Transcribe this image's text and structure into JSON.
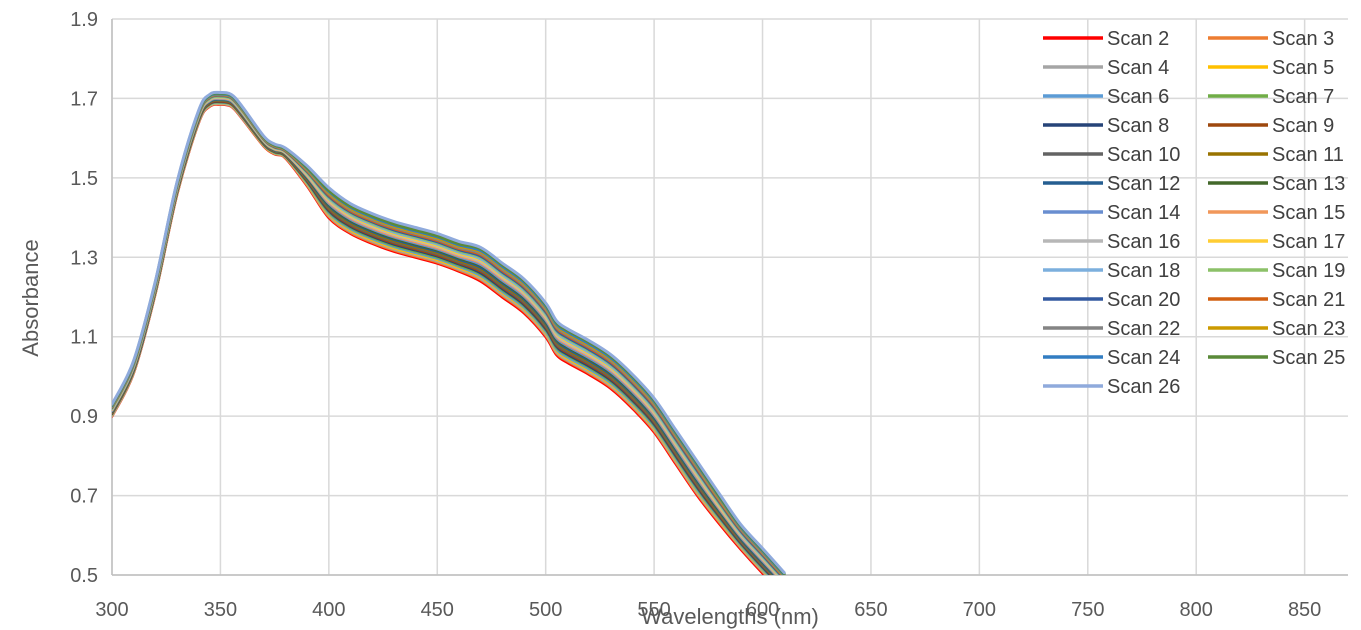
{
  "chart_data": {
    "type": "line",
    "title": "",
    "xlabel": "Wavelengths (nm)",
    "ylabel": "Absorbance",
    "xlim": [
      300,
      870
    ],
    "ylim": [
      0.5,
      1.9
    ],
    "xticks": [
      300,
      350,
      400,
      450,
      500,
      550,
      600,
      650,
      700,
      750,
      800,
      850
    ],
    "yticks": [
      0.5,
      0.7,
      0.9,
      1.1,
      1.3,
      1.5,
      1.7,
      1.9
    ],
    "grid": true,
    "legend_position": "top-right",
    "x": [
      300,
      310,
      320,
      330,
      340,
      345,
      350,
      355,
      360,
      370,
      375,
      380,
      390,
      400,
      410,
      420,
      430,
      440,
      450,
      460,
      470,
      480,
      490,
      500,
      505,
      510,
      520,
      530,
      540,
      550,
      560,
      570,
      580,
      590,
      600,
      610
    ],
    "series": [
      {
        "name": "Scan 2",
        "color": "#ff0000",
        "values": [
          0.9,
          1.01,
          1.21,
          1.46,
          1.64,
          1.68,
          1.685,
          1.68,
          1.65,
          1.58,
          1.56,
          1.55,
          1.48,
          1.4,
          1.36,
          1.335,
          1.315,
          1.3,
          1.285,
          1.265,
          1.24,
          1.2,
          1.16,
          1.1,
          1.055,
          1.035,
          1.005,
          0.97,
          0.92,
          0.86,
          0.78,
          0.7,
          0.63,
          0.565,
          0.505,
          0.45
        ]
      },
      {
        "name": "Scan 3",
        "color": "#ed7d31",
        "values": [
          0.901,
          1.011,
          1.211,
          1.461,
          1.641,
          1.681,
          1.686,
          1.681,
          1.651,
          1.581,
          1.561,
          1.551,
          1.482,
          1.403,
          1.363,
          1.338,
          1.318,
          1.303,
          1.288,
          1.268,
          1.244,
          1.204,
          1.164,
          1.104,
          1.059,
          1.039,
          1.009,
          0.974,
          0.924,
          0.864,
          0.784,
          0.704,
          0.634,
          0.569,
          0.509,
          0.453
        ]
      },
      {
        "name": "Scan 4",
        "color": "#a5a5a5",
        "values": [
          0.902,
          1.012,
          1.212,
          1.462,
          1.642,
          1.682,
          1.687,
          1.682,
          1.652,
          1.582,
          1.562,
          1.552,
          1.484,
          1.406,
          1.366,
          1.341,
          1.321,
          1.306,
          1.291,
          1.271,
          1.247,
          1.207,
          1.167,
          1.107,
          1.062,
          1.042,
          1.012,
          0.977,
          0.927,
          0.867,
          0.787,
          0.707,
          0.637,
          0.571,
          0.511,
          0.455
        ]
      },
      {
        "name": "Scan 5",
        "color": "#ffc000",
        "values": [
          0.904,
          1.014,
          1.214,
          1.464,
          1.644,
          1.684,
          1.689,
          1.684,
          1.654,
          1.583,
          1.563,
          1.553,
          1.486,
          1.409,
          1.369,
          1.344,
          1.324,
          1.309,
          1.294,
          1.274,
          1.251,
          1.211,
          1.171,
          1.111,
          1.066,
          1.046,
          1.016,
          0.981,
          0.931,
          0.871,
          0.791,
          0.711,
          0.64,
          0.574,
          0.514,
          0.458
        ]
      },
      {
        "name": "Scan 6",
        "color": "#5b9bd5",
        "values": [
          0.905,
          1.015,
          1.215,
          1.465,
          1.645,
          1.685,
          1.69,
          1.685,
          1.655,
          1.584,
          1.564,
          1.554,
          1.488,
          1.412,
          1.372,
          1.347,
          1.327,
          1.312,
          1.297,
          1.277,
          1.254,
          1.214,
          1.174,
          1.114,
          1.069,
          1.049,
          1.019,
          0.984,
          0.934,
          0.874,
          0.794,
          0.714,
          0.643,
          0.576,
          0.516,
          0.46
        ]
      },
      {
        "name": "Scan 7",
        "color": "#70ad47",
        "values": [
          0.906,
          1.016,
          1.216,
          1.466,
          1.646,
          1.686,
          1.691,
          1.686,
          1.656,
          1.585,
          1.565,
          1.555,
          1.49,
          1.415,
          1.375,
          1.35,
          1.33,
          1.315,
          1.3,
          1.28,
          1.258,
          1.218,
          1.178,
          1.118,
          1.073,
          1.053,
          1.023,
          0.988,
          0.938,
          0.878,
          0.798,
          0.718,
          0.646,
          0.579,
          0.519,
          0.462
        ]
      },
      {
        "name": "Scan 8",
        "color": "#264478",
        "values": [
          0.907,
          1.017,
          1.217,
          1.467,
          1.647,
          1.687,
          1.692,
          1.687,
          1.657,
          1.586,
          1.566,
          1.556,
          1.492,
          1.418,
          1.378,
          1.353,
          1.333,
          1.318,
          1.303,
          1.283,
          1.261,
          1.221,
          1.181,
          1.121,
          1.076,
          1.056,
          1.026,
          0.991,
          0.941,
          0.881,
          0.801,
          0.721,
          0.649,
          0.581,
          0.521,
          0.464
        ]
      },
      {
        "name": "Scan 9",
        "color": "#9e480e",
        "values": [
          0.908,
          1.018,
          1.218,
          1.468,
          1.648,
          1.688,
          1.693,
          1.688,
          1.658,
          1.587,
          1.567,
          1.557,
          1.494,
          1.421,
          1.381,
          1.356,
          1.336,
          1.321,
          1.306,
          1.286,
          1.265,
          1.225,
          1.185,
          1.125,
          1.08,
          1.06,
          1.03,
          0.995,
          0.945,
          0.885,
          0.805,
          0.725,
          0.652,
          0.584,
          0.524,
          0.467
        ]
      },
      {
        "name": "Scan 10",
        "color": "#636363",
        "values": [
          0.91,
          1.02,
          1.22,
          1.47,
          1.65,
          1.69,
          1.695,
          1.69,
          1.66,
          1.588,
          1.568,
          1.558,
          1.496,
          1.424,
          1.384,
          1.359,
          1.339,
          1.324,
          1.309,
          1.289,
          1.268,
          1.228,
          1.188,
          1.128,
          1.083,
          1.063,
          1.033,
          0.998,
          0.948,
          0.888,
          0.808,
          0.728,
          0.655,
          0.586,
          0.526,
          0.469
        ]
      },
      {
        "name": "Scan 11",
        "color": "#997300",
        "values": [
          0.911,
          1.021,
          1.221,
          1.471,
          1.651,
          1.691,
          1.696,
          1.691,
          1.661,
          1.589,
          1.569,
          1.559,
          1.498,
          1.427,
          1.387,
          1.362,
          1.342,
          1.327,
          1.312,
          1.292,
          1.272,
          1.232,
          1.192,
          1.132,
          1.087,
          1.067,
          1.037,
          1.002,
          0.952,
          0.892,
          0.812,
          0.732,
          0.658,
          0.589,
          0.529,
          0.471
        ]
      },
      {
        "name": "Scan 12",
        "color": "#255e91",
        "values": [
          0.912,
          1.022,
          1.222,
          1.472,
          1.652,
          1.692,
          1.697,
          1.692,
          1.662,
          1.59,
          1.57,
          1.56,
          1.5,
          1.43,
          1.39,
          1.365,
          1.345,
          1.33,
          1.315,
          1.295,
          1.275,
          1.235,
          1.195,
          1.135,
          1.09,
          1.07,
          1.04,
          1.005,
          0.955,
          0.895,
          0.815,
          0.735,
          0.661,
          0.591,
          0.531,
          0.473
        ]
      },
      {
        "name": "Scan 13",
        "color": "#43682b",
        "values": [
          0.913,
          1.023,
          1.223,
          1.473,
          1.653,
          1.693,
          1.698,
          1.693,
          1.663,
          1.591,
          1.571,
          1.561,
          1.502,
          1.433,
          1.393,
          1.368,
          1.348,
          1.333,
          1.318,
          1.298,
          1.279,
          1.239,
          1.199,
          1.139,
          1.094,
          1.074,
          1.044,
          1.009,
          0.959,
          0.899,
          0.819,
          0.739,
          0.664,
          0.594,
          0.534,
          0.476
        ]
      },
      {
        "name": "Scan 14",
        "color": "#698ed0",
        "values": [
          0.914,
          1.024,
          1.224,
          1.474,
          1.654,
          1.694,
          1.699,
          1.694,
          1.664,
          1.592,
          1.572,
          1.562,
          1.504,
          1.436,
          1.396,
          1.371,
          1.351,
          1.336,
          1.321,
          1.301,
          1.282,
          1.242,
          1.202,
          1.142,
          1.097,
          1.077,
          1.047,
          1.012,
          0.962,
          0.902,
          0.822,
          0.742,
          0.667,
          0.596,
          0.536,
          0.478
        ]
      },
      {
        "name": "Scan 15",
        "color": "#f1975a",
        "values": [
          0.916,
          1.026,
          1.226,
          1.476,
          1.656,
          1.696,
          1.701,
          1.696,
          1.666,
          1.593,
          1.573,
          1.563,
          1.506,
          1.439,
          1.399,
          1.374,
          1.354,
          1.339,
          1.324,
          1.304,
          1.286,
          1.246,
          1.206,
          1.146,
          1.101,
          1.081,
          1.051,
          1.016,
          0.966,
          0.906,
          0.826,
          0.746,
          0.67,
          0.599,
          0.539,
          0.48
        ]
      },
      {
        "name": "Scan 16",
        "color": "#b7b7b7",
        "values": [
          0.917,
          1.027,
          1.227,
          1.477,
          1.657,
          1.697,
          1.702,
          1.697,
          1.667,
          1.594,
          1.574,
          1.564,
          1.508,
          1.442,
          1.402,
          1.377,
          1.357,
          1.342,
          1.327,
          1.307,
          1.289,
          1.249,
          1.209,
          1.149,
          1.104,
          1.084,
          1.054,
          1.019,
          0.969,
          0.909,
          0.829,
          0.749,
          0.673,
          0.601,
          0.541,
          0.482
        ]
      },
      {
        "name": "Scan 17",
        "color": "#ffcd33",
        "values": [
          0.918,
          1.028,
          1.228,
          1.478,
          1.658,
          1.698,
          1.703,
          1.698,
          1.668,
          1.595,
          1.575,
          1.565,
          1.51,
          1.445,
          1.405,
          1.38,
          1.36,
          1.345,
          1.33,
          1.31,
          1.293,
          1.253,
          1.213,
          1.153,
          1.108,
          1.088,
          1.058,
          1.023,
          0.973,
          0.913,
          0.833,
          0.753,
          0.676,
          0.604,
          0.544,
          0.485
        ]
      },
      {
        "name": "Scan 18",
        "color": "#7cafdd",
        "values": [
          0.919,
          1.029,
          1.229,
          1.479,
          1.659,
          1.699,
          1.704,
          1.699,
          1.669,
          1.596,
          1.576,
          1.566,
          1.512,
          1.448,
          1.408,
          1.383,
          1.363,
          1.348,
          1.333,
          1.313,
          1.296,
          1.256,
          1.216,
          1.156,
          1.111,
          1.091,
          1.061,
          1.026,
          0.976,
          0.916,
          0.836,
          0.756,
          0.679,
          0.606,
          0.546,
          0.487
        ]
      },
      {
        "name": "Scan 19",
        "color": "#8cc168",
        "values": [
          0.92,
          1.03,
          1.23,
          1.48,
          1.66,
          1.7,
          1.705,
          1.7,
          1.67,
          1.597,
          1.577,
          1.567,
          1.514,
          1.451,
          1.411,
          1.386,
          1.366,
          1.351,
          1.336,
          1.316,
          1.3,
          1.26,
          1.22,
          1.16,
          1.115,
          1.095,
          1.065,
          1.03,
          0.98,
          0.92,
          0.84,
          0.76,
          0.682,
          0.609,
          0.549,
          0.489
        ]
      },
      {
        "name": "Scan 20",
        "color": "#335aa1",
        "values": [
          0.922,
          1.032,
          1.232,
          1.482,
          1.662,
          1.702,
          1.707,
          1.702,
          1.672,
          1.598,
          1.578,
          1.568,
          1.516,
          1.454,
          1.414,
          1.389,
          1.369,
          1.354,
          1.339,
          1.319,
          1.303,
          1.263,
          1.223,
          1.163,
          1.118,
          1.098,
          1.068,
          1.033,
          0.983,
          0.923,
          0.843,
          0.763,
          0.685,
          0.611,
          0.551,
          0.491
        ]
      },
      {
        "name": "Scan 21",
        "color": "#d26012",
        "values": [
          0.923,
          1.033,
          1.233,
          1.483,
          1.663,
          1.703,
          1.708,
          1.703,
          1.673,
          1.599,
          1.579,
          1.569,
          1.518,
          1.457,
          1.417,
          1.392,
          1.372,
          1.357,
          1.342,
          1.322,
          1.307,
          1.267,
          1.227,
          1.167,
          1.122,
          1.102,
          1.072,
          1.037,
          0.987,
          0.927,
          0.847,
          0.767,
          0.688,
          0.614,
          0.554,
          0.494
        ]
      },
      {
        "name": "Scan 22",
        "color": "#848484",
        "values": [
          0.924,
          1.034,
          1.234,
          1.484,
          1.664,
          1.704,
          1.709,
          1.704,
          1.674,
          1.6,
          1.58,
          1.57,
          1.52,
          1.46,
          1.42,
          1.395,
          1.375,
          1.36,
          1.345,
          1.325,
          1.31,
          1.27,
          1.23,
          1.17,
          1.125,
          1.105,
          1.075,
          1.04,
          0.99,
          0.93,
          0.85,
          0.77,
          0.691,
          0.616,
          0.556,
          0.496
        ]
      },
      {
        "name": "Scan 23",
        "color": "#cc9a00",
        "values": [
          0.925,
          1.035,
          1.235,
          1.485,
          1.665,
          1.705,
          1.71,
          1.705,
          1.675,
          1.601,
          1.581,
          1.571,
          1.522,
          1.463,
          1.423,
          1.398,
          1.378,
          1.363,
          1.348,
          1.328,
          1.314,
          1.274,
          1.234,
          1.174,
          1.129,
          1.109,
          1.079,
          1.044,
          0.994,
          0.934,
          0.854,
          0.774,
          0.694,
          0.619,
          0.559,
          0.498
        ]
      },
      {
        "name": "Scan 24",
        "color": "#327dc2",
        "values": [
          0.926,
          1.036,
          1.236,
          1.486,
          1.666,
          1.706,
          1.711,
          1.706,
          1.676,
          1.602,
          1.582,
          1.572,
          1.524,
          1.466,
          1.426,
          1.401,
          1.381,
          1.366,
          1.351,
          1.331,
          1.317,
          1.277,
          1.237,
          1.177,
          1.132,
          1.112,
          1.082,
          1.047,
          0.997,
          0.937,
          0.857,
          0.777,
          0.697,
          0.621,
          0.561,
          0.5
        ]
      },
      {
        "name": "Scan 25",
        "color": "#5a8a39",
        "values": [
          0.928,
          1.038,
          1.238,
          1.488,
          1.668,
          1.708,
          1.713,
          1.708,
          1.678,
          1.603,
          1.583,
          1.573,
          1.526,
          1.469,
          1.429,
          1.404,
          1.384,
          1.369,
          1.354,
          1.334,
          1.321,
          1.281,
          1.241,
          1.181,
          1.136,
          1.116,
          1.086,
          1.051,
          1.001,
          0.941,
          0.861,
          0.781,
          0.7,
          0.624,
          0.564,
          0.503
        ]
      },
      {
        "name": "Scan 26",
        "color": "#8faadc",
        "values": [
          0.93,
          1.04,
          1.24,
          1.49,
          1.67,
          1.71,
          1.715,
          1.71,
          1.68,
          1.605,
          1.585,
          1.575,
          1.53,
          1.475,
          1.435,
          1.41,
          1.39,
          1.375,
          1.36,
          1.34,
          1.325,
          1.285,
          1.245,
          1.185,
          1.14,
          1.12,
          1.09,
          1.055,
          1.005,
          0.945,
          0.865,
          0.785,
          0.705,
          0.627,
          0.567,
          0.506
        ]
      }
    ]
  }
}
